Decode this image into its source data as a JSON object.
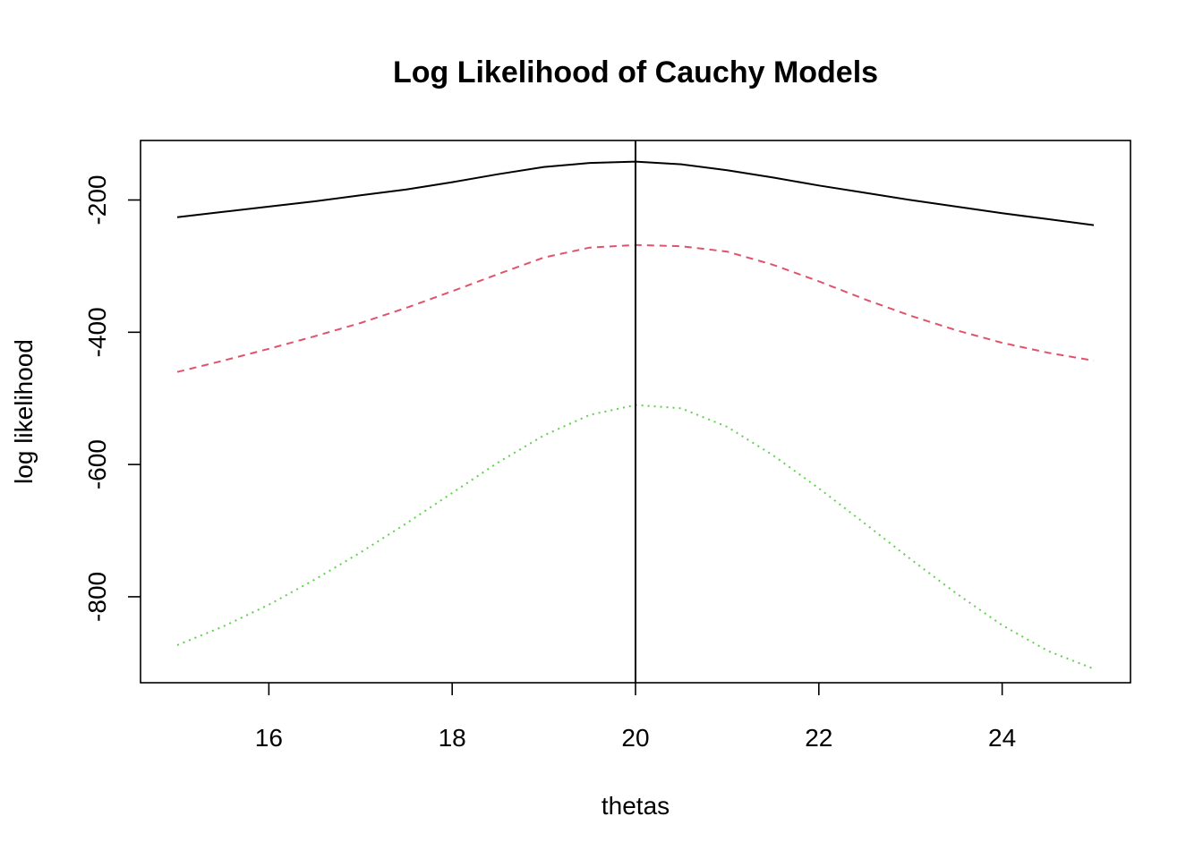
{
  "chart_data": {
    "type": "line",
    "title": "Log Likelihood of Cauchy Models",
    "xlabel": "thetas",
    "ylabel": "log likelihood",
    "xlim": [
      14.6,
      25.4
    ],
    "ylim": [
      -930,
      -110
    ],
    "x_ticks": [
      16,
      18,
      20,
      22,
      24
    ],
    "y_ticks": [
      -200,
      -400,
      -600,
      -800
    ],
    "vline": 20,
    "grid": false,
    "legend": "none",
    "series": [
      {
        "color": "#000000",
        "dash": "solid",
        "x": [
          15,
          15.5,
          16,
          16.5,
          17,
          17.5,
          18,
          18.5,
          19,
          19.5,
          20,
          20.5,
          21,
          21.5,
          22,
          22.5,
          23,
          23.5,
          24,
          24.5,
          25
        ],
        "values": [
          -226,
          -218,
          -210,
          -202,
          -193,
          -184,
          -173,
          -161,
          -150,
          -144,
          -142,
          -146,
          -155,
          -166,
          -178,
          -189,
          -200,
          -210,
          -220,
          -229,
          -238
        ]
      },
      {
        "color": "#DF536B",
        "dash": "dashed",
        "x": [
          15,
          15.5,
          16,
          16.5,
          17,
          17.5,
          18,
          18.5,
          19,
          19.5,
          20,
          20.5,
          21,
          21.5,
          22,
          22.5,
          23,
          23.5,
          24,
          24.5,
          25
        ],
        "values": [
          -460,
          -443,
          -425,
          -406,
          -386,
          -363,
          -338,
          -312,
          -287,
          -272,
          -268,
          -270,
          -278,
          -298,
          -323,
          -350,
          -375,
          -397,
          -416,
          -431,
          -443
        ]
      },
      {
        "color": "#61D04F",
        "dash": "dotted",
        "x": [
          15,
          15.5,
          16,
          16.5,
          17,
          17.5,
          18,
          18.5,
          19,
          19.5,
          20,
          20.5,
          21,
          21.5,
          22,
          22.5,
          23,
          23.5,
          24,
          24.5,
          25
        ],
        "values": [
          -873,
          -845,
          -812,
          -774,
          -733,
          -689,
          -643,
          -597,
          -556,
          -525,
          -510,
          -515,
          -543,
          -586,
          -636,
          -689,
          -743,
          -795,
          -843,
          -882,
          -909
        ]
      }
    ]
  }
}
